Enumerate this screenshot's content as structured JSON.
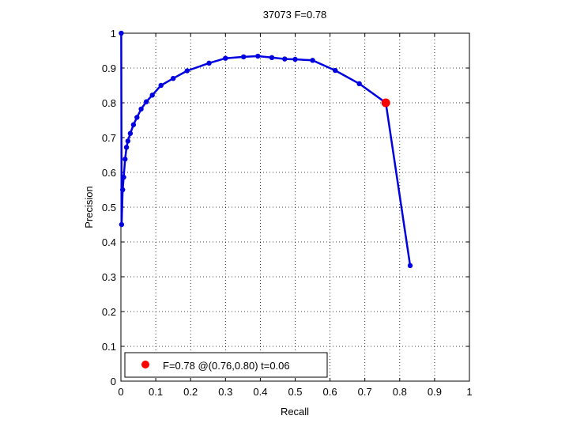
{
  "chart_data": {
    "type": "line",
    "title": "37073 F=0.78",
    "xlabel": "Recall",
    "ylabel": "Precision",
    "xlim": [
      0,
      1
    ],
    "ylim": [
      0,
      1
    ],
    "xticks": [
      "0",
      "0.1",
      "0.2",
      "0.3",
      "0.4",
      "0.5",
      "0.6",
      "0.7",
      "0.8",
      "0.9",
      "1"
    ],
    "yticks": [
      "0",
      "0.1",
      "0.2",
      "0.3",
      "0.4",
      "0.5",
      "0.6",
      "0.7",
      "0.8",
      "0.9",
      "1"
    ],
    "grid": true,
    "legend_position": "bottom-left",
    "legend_label": "F=0.78 @(0.76,0.80) t=0.06",
    "series": [
      {
        "color": "#0000e0",
        "points": [
          [
            0.001,
            1.0
          ],
          [
            0.002,
            0.45
          ],
          [
            0.005,
            0.55
          ],
          [
            0.008,
            0.586
          ],
          [
            0.012,
            0.638
          ],
          [
            0.016,
            0.672
          ],
          [
            0.02,
            0.69
          ],
          [
            0.027,
            0.712
          ],
          [
            0.036,
            0.737
          ],
          [
            0.046,
            0.758
          ],
          [
            0.058,
            0.782
          ],
          [
            0.073,
            0.803
          ],
          [
            0.09,
            0.822
          ],
          [
            0.115,
            0.85
          ],
          [
            0.15,
            0.87
          ],
          [
            0.19,
            0.892
          ],
          [
            0.253,
            0.914
          ],
          [
            0.3,
            0.928
          ],
          [
            0.352,
            0.932
          ],
          [
            0.393,
            0.934
          ],
          [
            0.433,
            0.93
          ],
          [
            0.47,
            0.926
          ],
          [
            0.5,
            0.925
          ],
          [
            0.55,
            0.922
          ],
          [
            0.615,
            0.893
          ],
          [
            0.684,
            0.855
          ],
          [
            0.76,
            0.8
          ],
          [
            0.83,
            0.332
          ]
        ]
      }
    ],
    "highlight": {
      "x": 0.76,
      "y": 0.8,
      "color": "#ff0000"
    }
  }
}
